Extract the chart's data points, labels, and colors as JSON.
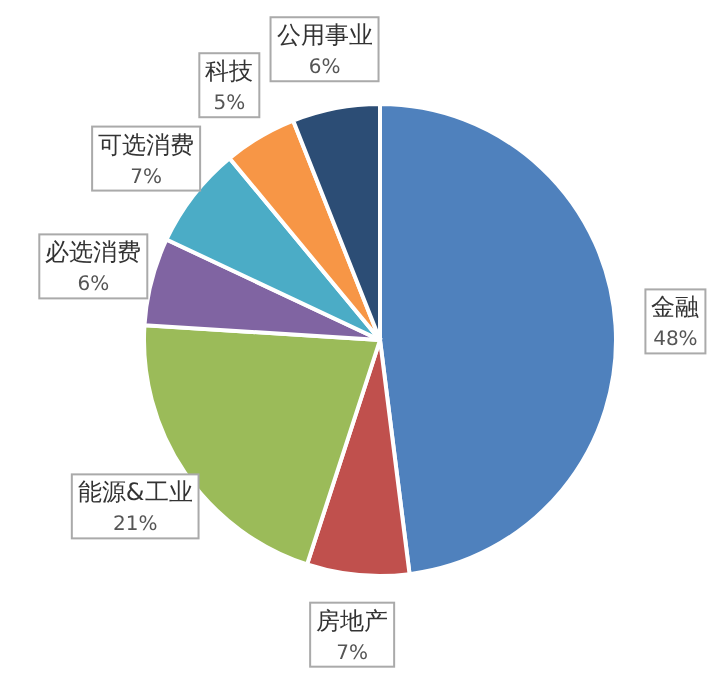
{
  "chart_data": {
    "type": "pie",
    "categories": [
      "金融",
      "房地产",
      "能源&工业",
      "必选消费",
      "可选消费",
      "科技",
      "公用事业"
    ],
    "values": [
      48,
      7,
      21,
      6,
      7,
      5,
      6
    ],
    "value_labels": [
      "48%",
      "7%",
      "21%",
      "6%",
      "7%",
      "5%",
      "6%"
    ],
    "colors": [
      "#4f81bd",
      "#c0504d",
      "#9bbb59",
      "#8064a2",
      "#4bacc6",
      "#f79646",
      "#2c4d75"
    ]
  }
}
